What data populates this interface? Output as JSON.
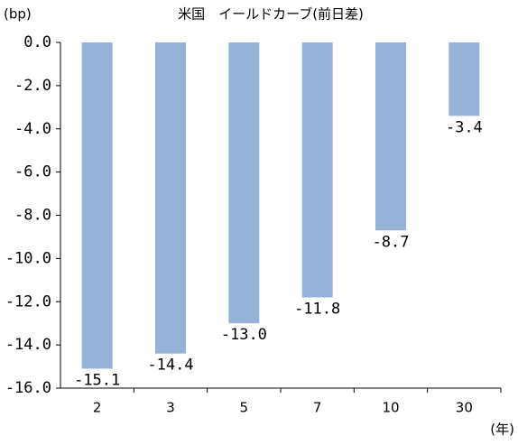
{
  "chart_data": {
    "type": "bar",
    "title": "米国　イールドカーブ(前日差)",
    "y_label": "(bp)",
    "x_label": "(年)",
    "categories": [
      "2",
      "3",
      "5",
      "7",
      "10",
      "30"
    ],
    "values": [
      -15.1,
      -14.4,
      -13.0,
      -11.8,
      -8.7,
      -3.4
    ],
    "value_labels": [
      "-15.1",
      "-14.4",
      "-13.0",
      "-11.8",
      "-8.7",
      "-3.4"
    ],
    "color": "#95b3d7",
    "ylim": [
      -16,
      0
    ],
    "yticks": [
      {
        "value": 0,
        "label": "0.0"
      },
      {
        "value": -2,
        "label": "-2.0"
      },
      {
        "value": -4,
        "label": "-4.0"
      },
      {
        "value": -6,
        "label": "-6.0"
      },
      {
        "value": -8,
        "label": "-8.0"
      },
      {
        "value": -10,
        "label": "-10.0"
      },
      {
        "value": -12,
        "label": "-12.0"
      },
      {
        "value": -14,
        "label": "-14.0"
      },
      {
        "value": -16,
        "label": "-16.0"
      }
    ]
  }
}
